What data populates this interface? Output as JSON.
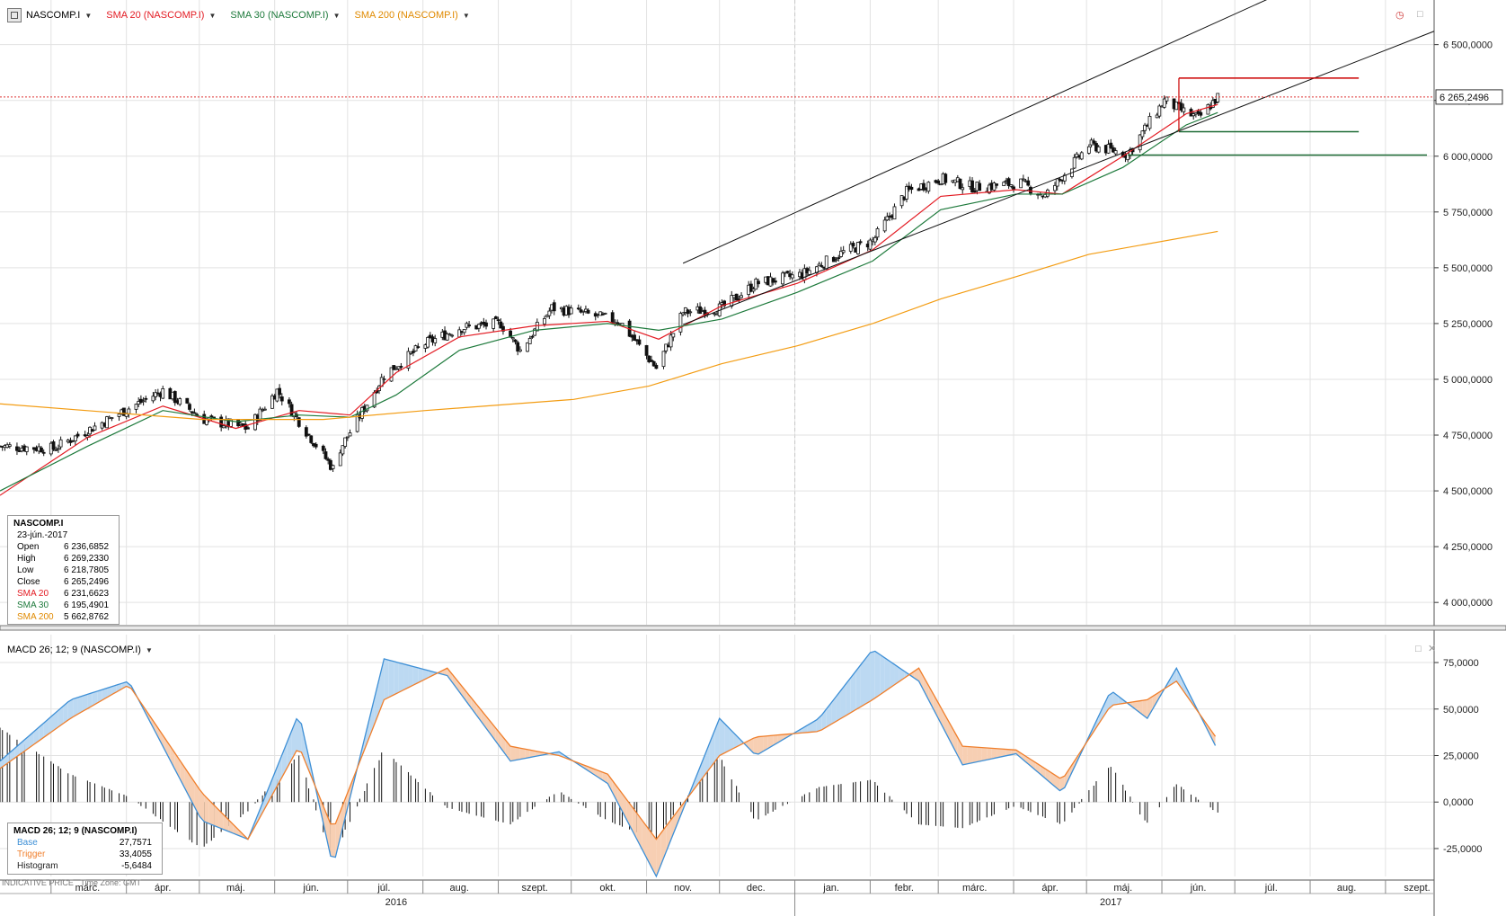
{
  "toolbar": {
    "symbol": "NASCOMP.I",
    "sma20": "SMA 20 (NASCOMP.I)",
    "sma30": "SMA 30 (NASCOMP.I)",
    "sma200": "SMA 200 (NASCOMP.I)"
  },
  "colors": {
    "sma20": "#e31b23",
    "sma30": "#1e7a3c",
    "sma200": "#f39c12",
    "base": "#3d8fd6",
    "trigger": "#f07f2c"
  },
  "price_tag": "6 265,2496",
  "info": {
    "title": "NASCOMP.I",
    "date": "23-jún.-2017",
    "rows": [
      {
        "k": "Open",
        "v": "6 236,6852"
      },
      {
        "k": "High",
        "v": "6 269,2330"
      },
      {
        "k": "Low",
        "v": "6 218,7805"
      },
      {
        "k": "Close",
        "v": "6 265,2496"
      },
      {
        "k": "SMA 20",
        "v": "6 231,6623"
      },
      {
        "k": "SMA 30",
        "v": "6 195,4901"
      },
      {
        "k": "SMA 200",
        "v": "5 662,8762"
      }
    ]
  },
  "macd": {
    "label": "MACD 26; 12; 9 (NASCOMP.I)",
    "rows": [
      {
        "k": "Base",
        "v": "27,7571"
      },
      {
        "k": "Trigger",
        "v": "33,4055"
      },
      {
        "k": "Histogram",
        "v": "-5,6484"
      }
    ]
  },
  "footer": {
    "indicative": "INDICATIVE PRICE",
    "timezone": "Time Zone: GMT"
  },
  "chart_data": [
    {
      "type": "candlestick",
      "series": [
        {
          "name": "NASCOMP.I",
          "x": [
            "2016-02-08",
            "2016-03-01",
            "2016-04-01",
            "2016-04-15",
            "2016-05-02",
            "2016-05-20",
            "2016-06-01",
            "2016-06-24",
            "2016-06-27",
            "2016-07-15",
            "2016-08-01",
            "2016-08-15",
            "2016-09-01",
            "2016-09-09",
            "2016-09-22",
            "2016-10-03",
            "2016-10-20",
            "2016-11-04",
            "2016-11-15",
            "2016-12-01",
            "2016-12-15",
            "2017-01-03",
            "2017-01-20",
            "2017-02-01",
            "2017-02-15",
            "2017-03-01",
            "2017-03-15",
            "2017-04-03",
            "2017-04-13",
            "2017-05-01",
            "2017-05-17",
            "2017-06-01",
            "2017-06-09",
            "2017-06-15",
            "2017-06-23"
          ],
          "y": [
            4700,
            4690,
            4870,
            4950,
            4820,
            4780,
            4950,
            4600,
            4690,
            5020,
            5160,
            5230,
            5250,
            5130,
            5320,
            5300,
            5260,
            5050,
            5300,
            5320,
            5430,
            5470,
            5570,
            5620,
            5840,
            5900,
            5860,
            5880,
            5820,
            6050,
            6010,
            6250,
            6200,
            6170,
            6265.25
          ]
        },
        {
          "name": "SMA 20",
          "x": [
            "2016-02-08",
            "2016-03-15",
            "2016-04-15",
            "2016-05-15",
            "2016-06-10",
            "2016-07-01",
            "2016-07-20",
            "2016-08-15",
            "2016-09-15",
            "2016-10-15",
            "2016-11-05",
            "2016-12-01",
            "2017-01-01",
            "2017-02-01",
            "2017-03-01",
            "2017-04-01",
            "2017-04-20",
            "2017-05-15",
            "2017-06-10",
            "2017-06-23"
          ],
          "y": [
            4480,
            4740,
            4880,
            4780,
            4860,
            4840,
            5030,
            5190,
            5240,
            5260,
            5180,
            5330,
            5430,
            5580,
            5820,
            5850,
            5830,
            6000,
            6190,
            6231.66
          ]
        },
        {
          "name": "SMA 30",
          "x": [
            "2016-02-08",
            "2016-03-15",
            "2016-04-15",
            "2016-05-15",
            "2016-06-10",
            "2016-07-01",
            "2016-07-20",
            "2016-08-15",
            "2016-09-15",
            "2016-10-15",
            "2016-11-05",
            "2016-12-01",
            "2017-01-01",
            "2017-02-01",
            "2017-03-01",
            "2017-04-01",
            "2017-04-20",
            "2017-05-15",
            "2017-06-10",
            "2017-06-23"
          ],
          "y": [
            4500,
            4700,
            4860,
            4810,
            4840,
            4830,
            4930,
            5130,
            5220,
            5250,
            5220,
            5270,
            5390,
            5530,
            5760,
            5830,
            5830,
            5950,
            6140,
            6195.49
          ]
        },
        {
          "name": "SMA 200",
          "x": [
            "2016-02-08",
            "2016-05-01",
            "2016-06-20",
            "2016-08-01",
            "2016-10-01",
            "2016-11-01",
            "2016-12-01",
            "2017-01-01",
            "2017-02-01",
            "2017-03-01",
            "2017-04-01",
            "2017-05-01",
            "2017-06-23"
          ],
          "y": [
            4890,
            4820,
            4820,
            4860,
            4910,
            4970,
            5070,
            5150,
            5250,
            5360,
            5460,
            5560,
            5662.88
          ]
        }
      ],
      "ylim": [
        3900,
        6700
      ],
      "yticks": [
        "4 000,0000",
        "4 250,0000",
        "4 500,0000",
        "4 750,0000",
        "5 000,0000",
        "5 250,0000",
        "5 500,0000",
        "5 750,0000",
        "6 000,0000",
        "6 250,0000",
        "6 500,0000"
      ],
      "xticks": [
        "márc.",
        "ápr.",
        "máj.",
        "jún.",
        "júl.",
        "aug.",
        "szept.",
        "okt.",
        "nov.",
        "dec.",
        "jan.",
        "febr.",
        "márc.",
        "ápr.",
        "máj.",
        "jún.",
        "júl.",
        "aug.",
        "szept."
      ],
      "years": [
        "2016",
        "2017"
      ],
      "levels": [
        6350,
        6110,
        6005
      ],
      "grid": true
    },
    {
      "type": "bar",
      "series": [
        {
          "name": "Base",
          "x": [
            "2016-02-08",
            "2016-03-08",
            "2016-04-01",
            "2016-05-01",
            "2016-05-20",
            "2016-06-10",
            "2016-06-24",
            "2016-07-15",
            "2016-08-10",
            "2016-09-05",
            "2016-09-25",
            "2016-10-15",
            "2016-11-04",
            "2016-11-30",
            "2016-12-15",
            "2017-01-10",
            "2017-02-01",
            "2017-02-20",
            "2017-03-10",
            "2017-04-01",
            "2017-04-20",
            "2017-05-10",
            "2017-05-25",
            "2017-06-06",
            "2017-06-23"
          ],
          "y": [
            22,
            55,
            65,
            -10,
            -20,
            48,
            -35,
            77,
            68,
            22,
            27,
            10,
            -40,
            45,
            25,
            45,
            82,
            65,
            20,
            26,
            5,
            60,
            45,
            72,
            27.76
          ]
        },
        {
          "name": "Trigger",
          "x": [
            "2016-02-08",
            "2016-03-08",
            "2016-04-01",
            "2016-05-01",
            "2016-05-20",
            "2016-06-10",
            "2016-06-24",
            "2016-07-15",
            "2016-08-10",
            "2016-09-05",
            "2016-09-25",
            "2016-10-15",
            "2016-11-04",
            "2016-11-30",
            "2016-12-15",
            "2017-01-10",
            "2017-02-01",
            "2017-02-20",
            "2017-03-10",
            "2017-04-01",
            "2017-04-20",
            "2017-05-10",
            "2017-05-25",
            "2017-06-06",
            "2017-06-23"
          ],
          "y": [
            18,
            45,
            63,
            5,
            -20,
            30,
            -15,
            55,
            72,
            30,
            25,
            15,
            -20,
            25,
            35,
            38,
            55,
            72,
            30,
            28,
            12,
            52,
            55,
            65,
            33.41
          ]
        },
        {
          "name": "Histogram",
          "x": [
            "2016-02-08",
            "2016-03-08",
            "2016-04-01",
            "2016-05-01",
            "2016-05-20",
            "2016-06-10",
            "2016-06-24",
            "2016-07-15",
            "2016-08-10",
            "2016-09-05",
            "2016-09-25",
            "2016-10-15",
            "2016-11-04",
            "2016-11-30",
            "2016-12-15",
            "2017-01-10",
            "2017-02-01",
            "2017-02-20",
            "2017-03-10",
            "2017-04-01",
            "2017-04-20",
            "2017-05-10",
            "2017-05-25",
            "2017-06-06",
            "2017-06-23"
          ],
          "y": [
            40,
            15,
            3,
            -25,
            -5,
            25,
            -30,
            28,
            -3,
            -12,
            6,
            -10,
            -20,
            25,
            -10,
            8,
            12,
            -12,
            -14,
            -2,
            -12,
            20,
            -12,
            10,
            -5.65
          ]
        }
      ],
      "ylim": [
        -40,
        90
      ],
      "yticks": [
        "-25,0000",
        "0,0000",
        "25,0000",
        "50,0000",
        "75,0000"
      ],
      "grid": true
    }
  ]
}
